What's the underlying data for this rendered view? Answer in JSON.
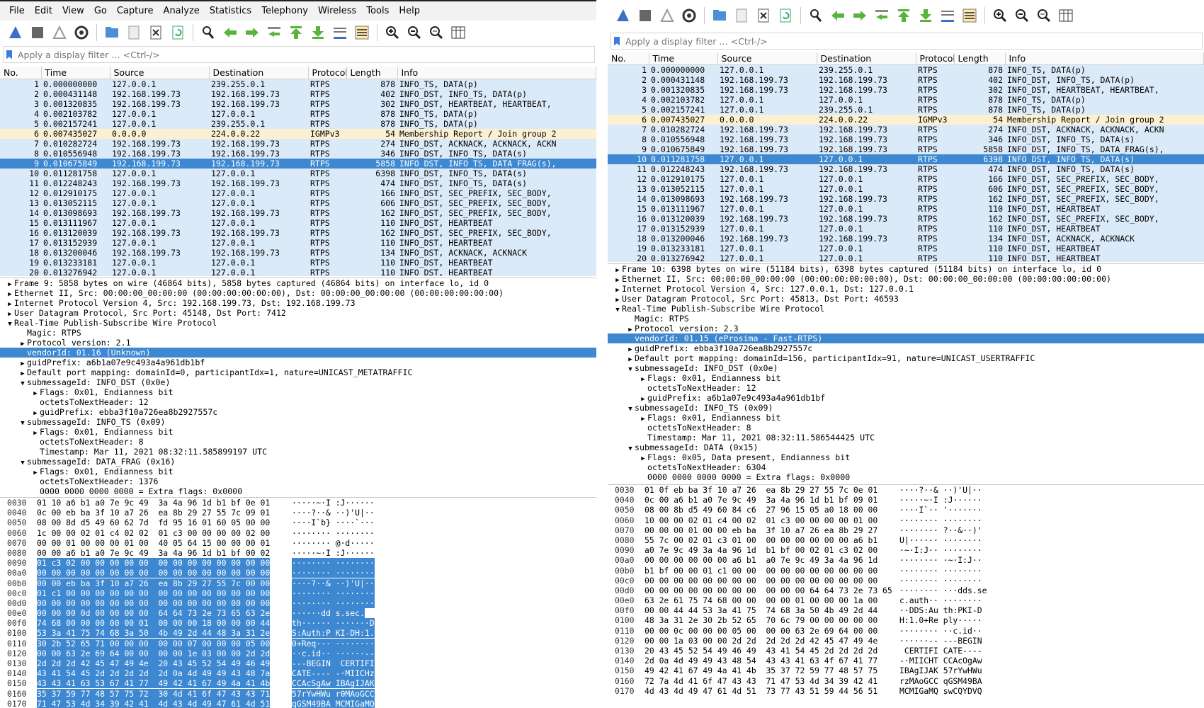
{
  "left": {
    "menu": [
      "File",
      "Edit",
      "View",
      "Go",
      "Capture",
      "Analyze",
      "Statistics",
      "Telephony",
      "Wireless",
      "Tools",
      "Help"
    ],
    "filter_placeholder": "Apply a display filter … <Ctrl-/>",
    "columns": [
      "No.",
      "Time",
      "Source",
      "Destination",
      "Protocol",
      "Length",
      "Info"
    ],
    "packets": [
      [
        "1",
        "0.000000000",
        "127.0.0.1",
        "239.255.0.1",
        "RTPS",
        "878",
        "INFO_TS, DATA(p)",
        "rtps"
      ],
      [
        "2",
        "0.000431148",
        "192.168.199.73",
        "192.168.199.73",
        "RTPS",
        "402",
        "INFO_DST, INFO_TS, DATA(p)",
        "rtps"
      ],
      [
        "3",
        "0.001320835",
        "192.168.199.73",
        "192.168.199.73",
        "RTPS",
        "302",
        "INFO_DST, HEARTBEAT, HEARTBEAT,",
        "rtps"
      ],
      [
        "4",
        "0.002103782",
        "127.0.0.1",
        "127.0.0.1",
        "RTPS",
        "878",
        "INFO_TS, DATA(p)",
        "rtps"
      ],
      [
        "5",
        "0.002157241",
        "127.0.0.1",
        "239.255.0.1",
        "RTPS",
        "878",
        "INFO_TS, DATA(p)",
        "rtps"
      ],
      [
        "6",
        "0.007435027",
        "0.0.0.0",
        "224.0.0.22",
        "IGMPv3",
        "54",
        "Membership Report / Join group 2",
        "igmp"
      ],
      [
        "7",
        "0.010282724",
        "192.168.199.73",
        "192.168.199.73",
        "RTPS",
        "274",
        "INFO_DST, ACKNACK, ACKNACK, ACKN",
        "rtps"
      ],
      [
        "8",
        "0.010556948",
        "192.168.199.73",
        "192.168.199.73",
        "RTPS",
        "346",
        "INFO_DST, INFO_TS, DATA(s)",
        "rtps"
      ],
      [
        "9",
        "0.010675849",
        "192.168.199.73",
        "192.168.199.73",
        "RTPS",
        "5858",
        "INFO_DST, INFO_TS, DATA_FRAG(s),",
        "sel"
      ],
      [
        "10",
        "0.011281758",
        "127.0.0.1",
        "127.0.0.1",
        "RTPS",
        "6398",
        "INFO_DST, INFO_TS, DATA(s)",
        "rtps"
      ],
      [
        "11",
        "0.012248243",
        "192.168.199.73",
        "192.168.199.73",
        "RTPS",
        "474",
        "INFO_DST, INFO_TS, DATA(s)",
        "rtps"
      ],
      [
        "12",
        "0.012910175",
        "127.0.0.1",
        "127.0.0.1",
        "RTPS",
        "166",
        "INFO_DST, SEC_PREFIX, SEC_BODY,",
        "rtps"
      ],
      [
        "13",
        "0.013052115",
        "127.0.0.1",
        "127.0.0.1",
        "RTPS",
        "606",
        "INFO_DST, SEC_PREFIX, SEC_BODY,",
        "rtps"
      ],
      [
        "14",
        "0.013098693",
        "192.168.199.73",
        "192.168.199.73",
        "RTPS",
        "162",
        "INFO_DST, SEC_PREFIX, SEC_BODY,",
        "rtps"
      ],
      [
        "15",
        "0.013111967",
        "127.0.0.1",
        "127.0.0.1",
        "RTPS",
        "110",
        "INFO_DST, HEARTBEAT",
        "rtps"
      ],
      [
        "16",
        "0.013120039",
        "192.168.199.73",
        "192.168.199.73",
        "RTPS",
        "162",
        "INFO_DST, SEC_PREFIX, SEC_BODY,",
        "rtps"
      ],
      [
        "17",
        "0.013152939",
        "127.0.0.1",
        "127.0.0.1",
        "RTPS",
        "110",
        "INFO_DST, HEARTBEAT",
        "rtps"
      ],
      [
        "18",
        "0.013200046",
        "192.168.199.73",
        "192.168.199.73",
        "RTPS",
        "134",
        "INFO_DST, ACKNACK, ACKNACK",
        "rtps"
      ],
      [
        "19",
        "0.013233181",
        "127.0.0.1",
        "127.0.0.1",
        "RTPS",
        "110",
        "INFO_DST, HEARTBEAT",
        "rtps"
      ],
      [
        "20",
        "0.013276942",
        "127.0.0.1",
        "127.0.0.1",
        "RTPS",
        "110",
        "INFO_DST, HEARTBEAT",
        "rtps"
      ]
    ],
    "tree": [
      [
        0,
        ">",
        "Frame 9: 5858 bytes on wire (46864 bits), 5858 bytes captured (46864 bits) on interface lo, id 0",
        ""
      ],
      [
        0,
        ">",
        "Ethernet II, Src: 00:00:00_00:00:00 (00:00:00:00:00:00), Dst: 00:00:00_00:00:00 (00:00:00:00:00:00)",
        ""
      ],
      [
        0,
        ">",
        "Internet Protocol Version 4, Src: 192.168.199.73, Dst: 192.168.199.73",
        ""
      ],
      [
        0,
        ">",
        "User Datagram Protocol, Src Port: 45148, Dst Port: 7412",
        ""
      ],
      [
        0,
        "v",
        "Real-Time Publish-Subscribe Wire Protocol",
        ""
      ],
      [
        1,
        "",
        "Magic: RTPS",
        ""
      ],
      [
        1,
        ">",
        "Protocol version: 2.1",
        ""
      ],
      [
        1,
        "",
        "vendorId: 01.16 (Unknown)",
        "sel"
      ],
      [
        1,
        ">",
        "guidPrefix: a6b1a07e9c493a4a961db1bf",
        ""
      ],
      [
        1,
        ">",
        "Default port mapping: domainId=0, participantIdx=1, nature=UNICAST_METATRAFFIC",
        ""
      ],
      [
        1,
        "v",
        "submessageId: INFO_DST (0x0e)",
        ""
      ],
      [
        2,
        ">",
        "Flags: 0x01, Endianness bit",
        ""
      ],
      [
        2,
        "",
        "octetsToNextHeader: 12",
        ""
      ],
      [
        2,
        ">",
        "guidPrefix: ebba3f10a726ea8b2927557c",
        ""
      ],
      [
        1,
        "v",
        "submessageId: INFO_TS (0x09)",
        ""
      ],
      [
        2,
        ">",
        "Flags: 0x01, Endianness bit",
        ""
      ],
      [
        2,
        "",
        "octetsToNextHeader: 8",
        ""
      ],
      [
        2,
        "",
        "Timestamp: Mar 11, 2021 08:32:11.585899197 UTC",
        ""
      ],
      [
        1,
        "v",
        "submessageId: DATA_FRAG (0x16)",
        ""
      ],
      [
        2,
        ">",
        "Flags: 0x01, Endianness bit",
        ""
      ],
      [
        2,
        "",
        "octetsToNextHeader: 1376",
        ""
      ],
      [
        2,
        "",
        "0000 0000 0000 0000 = Extra flags: 0x0000",
        ""
      ]
    ],
    "hex": [
      [
        "0030",
        "01 10 a6 b1 a0 7e 9c 49  3a 4a 96 1d b1 bf 0e 01",
        "·····~·I :J······",
        ""
      ],
      [
        "0040",
        "0c 00 eb ba 3f 10 a7 26  ea 8b 29 27 55 7c 09 01",
        "····?··& ··)'U|··",
        ""
      ],
      [
        "0050",
        "08 00 8d d5 49 60 62 7d  fd 95 16 01 60 05 00 00",
        "····I`b} ····`···",
        ""
      ],
      [
        "0060",
        "1c 00 00 02 01 c4 02 02  01 c3 00 00 00 00 02 00",
        "········ ········",
        ""
      ],
      [
        "0070",
        "00 00 01 00 00 00 01 00  40 05 64 15 00 00 00 01",
        "········ @·d·····",
        ""
      ],
      [
        "0080",
        "00 00 a6 b1 a0 7e 9c 49  3a 4a 96 1d b1 bf 00 02",
        "·····~·I :J······",
        "p"
      ],
      [
        "0090",
        "01 c3 02 00 00 00 00 00  00 00 00 00 00 00 00 00",
        "········ ········",
        "hi"
      ],
      [
        "00a0",
        "00 00 00 00 00 00 00 00  00 00 00 00 00 00 00 00",
        "········ ········",
        "hi"
      ],
      [
        "00b0",
        "00 00 eb ba 3f 10 a7 26  ea 8b 29 27 55 7c 00 00",
        "····?··& ··)'U|··",
        "hi"
      ],
      [
        "00c0",
        "01 c1 00 00 00 00 00 00  00 00 00 00 00 00 00 00",
        "········ ········",
        "hi"
      ],
      [
        "00d0",
        "00 00 00 00 00 00 00 00  00 00 00 00 00 00 00 00",
        "········ ········",
        "hi"
      ],
      [
        "00e0",
        "00 00 00 0d 00 00 00 00  64 64 73 2e 73 65 63 2e",
        "······dd s.sec.",
        "hi"
      ],
      [
        "00f0",
        "74 68 00 00 00 00 00 01  00 00 00 18 00 00 00 44",
        "th······ ·······D",
        "hi"
      ],
      [
        "0100",
        "53 3a 41 75 74 68 3a 50  4b 49 2d 44 48 3a 31 2e",
        "S:Auth:P KI-DH:1.",
        "hi"
      ],
      [
        "0110",
        "30 2b 52 65 71 00 00 00  00 00 07 00 00 00 05 00",
        "0+Req··· ········",
        "hi"
      ],
      [
        "0120",
        "00 00 63 2e 69 64 00 00  00 00 1e 03 00 00 2d 2d",
        "··c.id·· ······--",
        "hi"
      ],
      [
        "0130",
        "2d 2d 2d 42 45 47 49 4e  20 43 45 52 54 49 46 49",
        "---BEGIN  CERTIFI",
        "hi"
      ],
      [
        "0140",
        "43 41 54 45 2d 2d 2d 2d  2d 0a 4d 49 49 43 48 7a",
        "CATE---- -·MIICHz",
        "hi"
      ],
      [
        "0150",
        "43 43 41 63 53 67 41 77  49 42 41 67 49 4a 41 4b",
        "CCAcSgAw IBAgIJAK",
        "hi"
      ],
      [
        "0160",
        "35 37 59 77 48 57 75 72  30 4d 41 6f 47 43 43 71",
        "57rYwHWu r0MAoGCC",
        "hi"
      ],
      [
        "0170",
        "71 47 53 4d 34 39 42 41  4d 43 4d 49 47 61 4d 51",
        "qGSM49BA MCMIGaMQ",
        "hi"
      ]
    ]
  },
  "right": {
    "filter_placeholder": "Apply a display filter … <Ctrl-/>",
    "columns": [
      "No.",
      "Time",
      "Source",
      "Destination",
      "Protocol",
      "Length",
      "Info"
    ],
    "packets": [
      [
        "1",
        "0.000000000",
        "127.0.0.1",
        "239.255.0.1",
        "RTPS",
        "878",
        "INFO_TS, DATA(p)",
        "rtps"
      ],
      [
        "2",
        "0.000431148",
        "192.168.199.73",
        "192.168.199.73",
        "RTPS",
        "402",
        "INFO_DST, INFO_TS, DATA(p)",
        "rtps"
      ],
      [
        "3",
        "0.001320835",
        "192.168.199.73",
        "192.168.199.73",
        "RTPS",
        "302",
        "INFO_DST, HEARTBEAT, HEARTBEAT,",
        "rtps"
      ],
      [
        "4",
        "0.002103782",
        "127.0.0.1",
        "127.0.0.1",
        "RTPS",
        "878",
        "INFO_TS, DATA(p)",
        "rtps"
      ],
      [
        "5",
        "0.002157241",
        "127.0.0.1",
        "239.255.0.1",
        "RTPS",
        "878",
        "INFO_TS, DATA(p)",
        "rtps"
      ],
      [
        "6",
        "0.007435027",
        "0.0.0.0",
        "224.0.0.22",
        "IGMPv3",
        "54",
        "Membership Report / Join group 2",
        "igmp"
      ],
      [
        "7",
        "0.010282724",
        "192.168.199.73",
        "192.168.199.73",
        "RTPS",
        "274",
        "INFO_DST, ACKNACK, ACKNACK, ACKN",
        "rtps"
      ],
      [
        "8",
        "0.010556948",
        "192.168.199.73",
        "192.168.199.73",
        "RTPS",
        "346",
        "INFO_DST, INFO_TS, DATA(s)",
        "rtps"
      ],
      [
        "9",
        "0.010675849",
        "192.168.199.73",
        "192.168.199.73",
        "RTPS",
        "5858",
        "INFO_DST, INFO_TS, DATA_FRAG(s),",
        "rtps"
      ],
      [
        "10",
        "0.011281758",
        "127.0.0.1",
        "127.0.0.1",
        "RTPS",
        "6398",
        "INFO_DST, INFO_TS, DATA(s)",
        "sel"
      ],
      [
        "11",
        "0.012248243",
        "192.168.199.73",
        "192.168.199.73",
        "RTPS",
        "474",
        "INFO_DST, INFO_TS, DATA(s)",
        "rtps"
      ],
      [
        "12",
        "0.012910175",
        "127.0.0.1",
        "127.0.0.1",
        "RTPS",
        "166",
        "INFO_DST, SEC_PREFIX, SEC_BODY,",
        "rtps"
      ],
      [
        "13",
        "0.013052115",
        "127.0.0.1",
        "127.0.0.1",
        "RTPS",
        "606",
        "INFO_DST, SEC_PREFIX, SEC_BODY,",
        "rtps"
      ],
      [
        "14",
        "0.013098693",
        "192.168.199.73",
        "192.168.199.73",
        "RTPS",
        "162",
        "INFO_DST, SEC_PREFIX, SEC_BODY,",
        "rtps"
      ],
      [
        "15",
        "0.013111967",
        "127.0.0.1",
        "127.0.0.1",
        "RTPS",
        "110",
        "INFO_DST, HEARTBEAT",
        "rtps"
      ],
      [
        "16",
        "0.013120039",
        "192.168.199.73",
        "192.168.199.73",
        "RTPS",
        "162",
        "INFO_DST, SEC_PREFIX, SEC_BODY,",
        "rtps"
      ],
      [
        "17",
        "0.013152939",
        "127.0.0.1",
        "127.0.0.1",
        "RTPS",
        "110",
        "INFO_DST, HEARTBEAT",
        "rtps"
      ],
      [
        "18",
        "0.013200046",
        "192.168.199.73",
        "192.168.199.73",
        "RTPS",
        "134",
        "INFO_DST, ACKNACK, ACKNACK",
        "rtps"
      ],
      [
        "19",
        "0.013233181",
        "127.0.0.1",
        "127.0.0.1",
        "RTPS",
        "110",
        "INFO_DST, HEARTBEAT",
        "rtps"
      ],
      [
        "20",
        "0.013276942",
        "127.0.0.1",
        "127.0.0.1",
        "RTPS",
        "110",
        "INFO_DST, HEARTBEAT",
        "rtps"
      ]
    ],
    "tree": [
      [
        0,
        ">",
        "Frame 10: 6398 bytes on wire (51184 bits), 6398 bytes captured (51184 bits) on interface lo, id 0",
        ""
      ],
      [
        0,
        ">",
        "Ethernet II, Src: 00:00:00_00:00:00 (00:00:00:00:00:00), Dst: 00:00:00_00:00:00 (00:00:00:00:00:00)",
        ""
      ],
      [
        0,
        ">",
        "Internet Protocol Version 4, Src: 127.0.0.1, Dst: 127.0.0.1",
        ""
      ],
      [
        0,
        ">",
        "User Datagram Protocol, Src Port: 45813, Dst Port: 46593",
        ""
      ],
      [
        0,
        "v",
        "Real-Time Publish-Subscribe Wire Protocol",
        ""
      ],
      [
        1,
        "",
        "Magic: RTPS",
        ""
      ],
      [
        1,
        ">",
        "Protocol version: 2.3",
        ""
      ],
      [
        1,
        "",
        "vendorId: 01.15 (eProsima - Fast-RTPS)",
        "sel"
      ],
      [
        1,
        ">",
        "guidPrefix: ebba3f10a726ea8b2927557c",
        ""
      ],
      [
        1,
        ">",
        "Default port mapping: domainId=156, participantIdx=91, nature=UNICAST_USERTRAFFIC",
        ""
      ],
      [
        1,
        "v",
        "submessageId: INFO_DST (0x0e)",
        ""
      ],
      [
        2,
        ">",
        "Flags: 0x01, Endianness bit",
        ""
      ],
      [
        2,
        "",
        "octetsToNextHeader: 12",
        ""
      ],
      [
        2,
        ">",
        "guidPrefix: a6b1a07e9c493a4a961db1bf",
        ""
      ],
      [
        1,
        "v",
        "submessageId: INFO_TS (0x09)",
        ""
      ],
      [
        2,
        ">",
        "Flags: 0x01, Endianness bit",
        ""
      ],
      [
        2,
        "",
        "octetsToNextHeader: 8",
        ""
      ],
      [
        2,
        "",
        "Timestamp: Mar 11, 2021 08:32:11.586544425 UTC",
        ""
      ],
      [
        1,
        "v",
        "submessageId: DATA (0x15)",
        ""
      ],
      [
        2,
        ">",
        "Flags: 0x05, Data present, Endianness bit",
        ""
      ],
      [
        2,
        "",
        "octetsToNextHeader: 6304",
        ""
      ],
      [
        2,
        "",
        "0000 0000 0000 0000 = Extra flags: 0x0000",
        ""
      ]
    ],
    "hex": [
      [
        "0030",
        "01 0f eb ba 3f 10 a7 26  ea 8b 29 27 55 7c 0e 01",
        "····?··& ··)'U|··",
        "p6"
      ],
      [
        "0040",
        "0c 00 a6 b1 a0 7e 9c 49  3a 4a 96 1d b1 bf 09 01",
        "·····~·I :J······",
        ""
      ],
      [
        "0050",
        "08 00 8b d5 49 60 84 c6  27 96 15 05 a0 18 00 00",
        "····I`·· '·······",
        ""
      ],
      [
        "0060",
        "10 00 00 02 01 c4 00 02  01 c3 00 00 00 00 01 00",
        "········ ········",
        ""
      ],
      [
        "0070",
        "00 00 00 01 00 00 eb ba  3f 10 a7 26 ea 8b 29 27",
        "········ ?··&··)'",
        ""
      ],
      [
        "0080",
        "55 7c 00 02 01 c3 01 00  00 00 00 00 00 00 a6 b1",
        "U|······ ········",
        ""
      ],
      [
        "0090",
        "a0 7e 9c 49 3a 4a 96 1d  b1 bf 00 02 01 c3 02 00",
        "·~·I:J·· ········",
        ""
      ],
      [
        "00a0",
        "00 00 00 00 00 00 a6 b1  a0 7e 9c 49 3a 4a 96 1d",
        "········ ·~·I:J··",
        ""
      ],
      [
        "00b0",
        "b1 bf 00 00 01 c1 00 00  00 00 00 00 00 00 00 00",
        "········ ········",
        ""
      ],
      [
        "00c0",
        "00 00 00 00 00 00 00 00  00 00 00 00 00 00 00 00",
        "········ ········",
        ""
      ],
      [
        "00d0",
        "00 00 00 00 00 00 00 00  00 00 00 64 64 73 2e 73 65",
        "········ ···dds.se",
        ""
      ],
      [
        "00e0",
        "63 2e 61 75 74 68 00 00  00 00 01 00 00 00 1a 00",
        "c.auth·· ········",
        ""
      ],
      [
        "00f0",
        "00 00 44 44 53 3a 41 75  74 68 3a 50 4b 49 2d 44",
        "··DDS:Au th:PKI-D",
        ""
      ],
      [
        "0100",
        "48 3a 31 2e 30 2b 52 65  70 6c 79 00 00 00 00 00",
        "H:1.0+Re ply·····",
        ""
      ],
      [
        "0110",
        "00 00 0c 00 00 00 05 00  00 00 63 2e 69 64 00 00",
        "········ ··c.id··",
        ""
      ],
      [
        "0120",
        "00 00 1a 03 00 00 2d 2d  2d 2d 2d 42 45 47 49 4e",
        "······-- ---BEGIN",
        ""
      ],
      [
        "0130",
        "20 43 45 52 54 49 46 49  43 41 54 45 2d 2d 2d 2d",
        " CERTIFI CATE----",
        ""
      ],
      [
        "0140",
        "2d 0a 4d 49 49 43 48 54  43 43 41 63 4f 67 41 77",
        "-·MIICHT CCAcOgAw",
        ""
      ],
      [
        "0150",
        "49 42 41 67 49 4a 41 4b  35 37 72 59 77 48 57 75",
        "IBAgIJAK 57rYwHWu",
        ""
      ],
      [
        "0160",
        "72 7a 4d 41 6f 47 43 43  71 47 53 4d 34 39 42 41",
        "rzMAoGCC qGSM49BA",
        ""
      ],
      [
        "0170",
        "4d 43 4d 49 47 61 4d 51  73 77 43 51 59 44 56 51",
        "MCMIGaMQ swCQYDVQ",
        ""
      ]
    ]
  }
}
